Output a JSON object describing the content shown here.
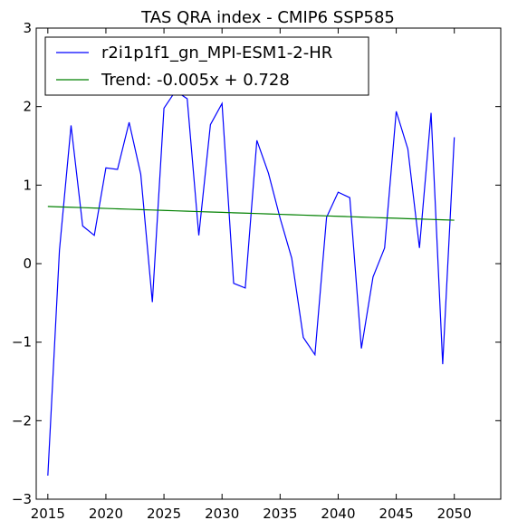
{
  "chart_data": {
    "type": "line",
    "title": "TAS QRA index - CMIP6 SSP585",
    "xlabel": "",
    "ylabel": "",
    "xlim": [
      2014,
      2054
    ],
    "ylim": [
      -3,
      3
    ],
    "x_ticks": [
      2015,
      2020,
      2025,
      2030,
      2035,
      2040,
      2045,
      2050
    ],
    "y_ticks": [
      -3,
      -2,
      -1,
      0,
      1,
      2,
      3
    ],
    "grid": false,
    "legend_position": "top-left",
    "x": [
      2015,
      2016,
      2017,
      2018,
      2019,
      2020,
      2021,
      2022,
      2023,
      2024,
      2025,
      2026,
      2027,
      2028,
      2029,
      2030,
      2031,
      2032,
      2033,
      2034,
      2035,
      2036,
      2037,
      2038,
      2039,
      2040,
      2041,
      2042,
      2043,
      2044,
      2045,
      2046,
      2047,
      2048,
      2049,
      2050
    ],
    "series": [
      {
        "name": "r2i1p1f1_gn_MPI-ESM1-2-HR",
        "color": "#0000ff",
        "values": [
          -2.7,
          0.17,
          1.76,
          0.48,
          0.36,
          1.22,
          1.2,
          1.8,
          1.14,
          -0.49,
          1.98,
          2.2,
          2.1,
          0.36,
          1.77,
          2.04,
          -0.25,
          -0.31,
          1.57,
          1.15,
          0.58,
          0.07,
          -0.94,
          -1.16,
          0.59,
          0.91,
          0.84,
          -1.08,
          -0.17,
          0.2,
          1.94,
          1.46,
          0.2,
          1.92,
          -1.28,
          1.61
        ]
      },
      {
        "name": "Trend: -0.005x + 0.728",
        "color": "#008000",
        "values": [
          0.728,
          0.723,
          0.718,
          0.713,
          0.708,
          0.703,
          0.698,
          0.693,
          0.688,
          0.683,
          0.678,
          0.673,
          0.668,
          0.663,
          0.658,
          0.653,
          0.648,
          0.643,
          0.638,
          0.633,
          0.628,
          0.623,
          0.618,
          0.613,
          0.608,
          0.603,
          0.598,
          0.593,
          0.588,
          0.583,
          0.578,
          0.573,
          0.568,
          0.563,
          0.558,
          0.553
        ]
      }
    ]
  }
}
